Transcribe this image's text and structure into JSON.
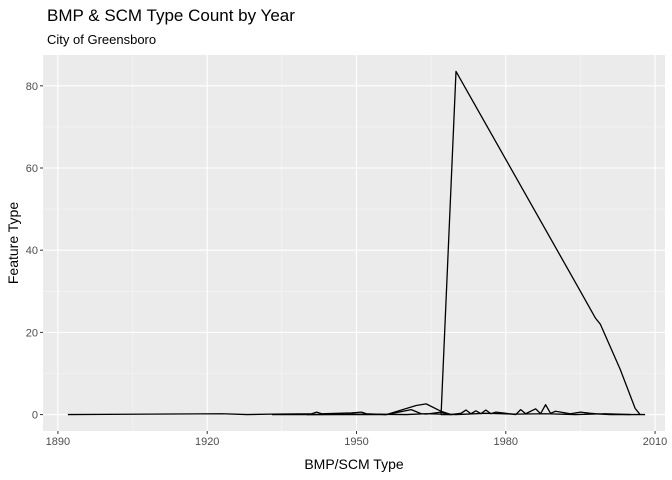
{
  "chart_data": {
    "type": "line",
    "title": "BMP & SCM Type Count by Year",
    "subtitle": "City of Greensboro",
    "xlabel": "BMP/SCM Type",
    "ylabel": "Feature Type",
    "xlim": [
      1887,
      2012
    ],
    "ylim": [
      -4,
      87.5
    ],
    "x_ticks": [
      1890,
      1920,
      1950,
      1980,
      2010
    ],
    "y_ticks": [
      0,
      20,
      40,
      60,
      80
    ],
    "x_minor_ticks": [
      1905,
      1935,
      1965,
      1995
    ],
    "y_minor_ticks": [
      10,
      30,
      50,
      70
    ],
    "grid": true,
    "legend": "none",
    "colors": {
      "panel": "#ebebeb",
      "grid_major": "#ffffff",
      "line": "#000000"
    },
    "series": [
      {
        "values": [
          [
            1892,
            0
          ],
          [
            1923,
            0.2
          ],
          [
            1928,
            0
          ],
          [
            1933,
            0.1
          ],
          [
            1941,
            0.2
          ],
          [
            1942,
            0.6
          ],
          [
            1943,
            0.2
          ],
          [
            1949,
            0.4
          ],
          [
            1951,
            0.6
          ],
          [
            1952,
            0.2
          ],
          [
            1956,
            0
          ],
          [
            1962,
            2.2
          ],
          [
            1964,
            2.6
          ],
          [
            1967,
            0.8
          ],
          [
            1969,
            0
          ],
          [
            1967,
            0
          ],
          [
            1970,
            83.5
          ],
          [
            1995,
            30
          ],
          [
            1998,
            23.5
          ],
          [
            1999,
            22
          ],
          [
            2003,
            11
          ],
          [
            2006,
            1.5
          ],
          [
            2007,
            0
          ]
        ]
      },
      {
        "values": [
          [
            1933,
            0
          ],
          [
            1956,
            0
          ],
          [
            1961,
            1.2
          ],
          [
            1963,
            0.2
          ],
          [
            1964,
            0.1
          ],
          [
            1967,
            0.6
          ],
          [
            1969,
            0
          ],
          [
            1971,
            0.3
          ],
          [
            1972,
            1.1
          ],
          [
            1973,
            0.2
          ],
          [
            1974,
            0.9
          ],
          [
            1975,
            0.2
          ],
          [
            1976,
            1.1
          ],
          [
            1977,
            0.2
          ],
          [
            1978,
            0.6
          ],
          [
            1980,
            0.3
          ],
          [
            1982,
            0
          ],
          [
            1983,
            1.2
          ],
          [
            1984,
            0.2
          ],
          [
            1986,
            1.4
          ],
          [
            1987,
            0.2
          ],
          [
            1988,
            2.4
          ],
          [
            1989,
            0.3
          ],
          [
            1990,
            0.8
          ],
          [
            1993,
            0.2
          ],
          [
            1995,
            0.6
          ],
          [
            1997,
            0.3
          ],
          [
            1999,
            0.1
          ],
          [
            2001,
            0
          ],
          [
            2008,
            0
          ]
        ]
      },
      {
        "values": [
          [
            1940,
            0
          ],
          [
            1952,
            0.1
          ],
          [
            1960,
            0
          ],
          [
            1964,
            0.2
          ],
          [
            1970,
            0
          ],
          [
            1976,
            0.3
          ],
          [
            1982,
            0.1
          ],
          [
            1988,
            0.2
          ],
          [
            1994,
            0
          ],
          [
            2000,
            0.2
          ],
          [
            2005,
            0
          ]
        ]
      }
    ]
  }
}
